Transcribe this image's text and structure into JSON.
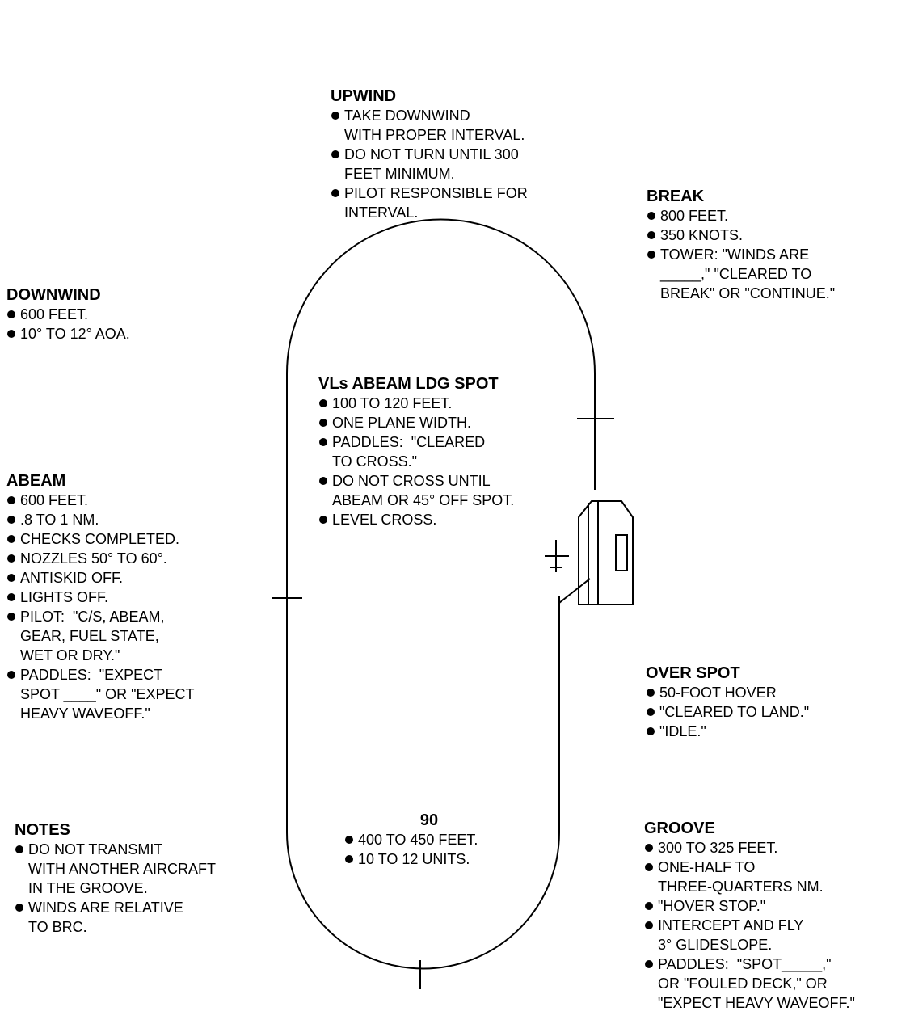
{
  "colors": {
    "ink": "#000000",
    "background": "#ffffff"
  },
  "sections": {
    "upwind": {
      "title": "UPWIND",
      "items": [
        "TAKE DOWNWIND\nWITH PROPER INTERVAL.",
        "DO NOT TURN UNTIL 300\nFEET MINIMUM.",
        "PILOT RESPONSIBLE FOR\nINTERVAL."
      ]
    },
    "break": {
      "title": "BREAK",
      "items": [
        "800 FEET.",
        "350 KNOTS.",
        "TOWER: \"WINDS ARE\n_____,\" \"CLEARED TO\nBREAK\" OR \"CONTINUE.\""
      ]
    },
    "downwind": {
      "title": "DOWNWIND",
      "items": [
        "600 FEET.",
        "10° TO 12° AOA."
      ]
    },
    "vls_abeam": {
      "title": "VLs ABEAM LDG SPOT",
      "items": [
        "100 TO 120 FEET.",
        "ONE PLANE WIDTH.",
        "PADDLES:  \"CLEARED\nTO CROSS.\"",
        "DO NOT CROSS UNTIL\nABEAM OR 45° OFF SPOT.",
        "LEVEL CROSS."
      ]
    },
    "abeam": {
      "title": "ABEAM",
      "items": [
        "600 FEET.",
        ".8 TO 1 NM.",
        "CHECKS COMPLETED.",
        "NOZZLES 50° TO 60°.",
        "ANTISKID OFF.",
        "LIGHTS OFF.",
        "PILOT:  \"C/S, ABEAM,\nGEAR, FUEL STATE,\nWET OR DRY.\"",
        "PADDLES:  \"EXPECT\nSPOT ____\" OR \"EXPECT\nHEAVY WAVEOFF.\""
      ]
    },
    "over_spot": {
      "title": "OVER SPOT",
      "items": [
        "50-FOOT HOVER",
        "\"CLEARED TO LAND.\"",
        "\"IDLE.\""
      ]
    },
    "ninety": {
      "title": "90",
      "items": [
        "400 TO 450 FEET.",
        "10 TO 12 UNITS."
      ]
    },
    "notes": {
      "title": "NOTES",
      "items": [
        "DO NOT TRANSMIT\nWITH ANOTHER AIRCRAFT\nIN THE GROOVE.",
        "WINDS ARE RELATIVE\nTO BRC."
      ]
    },
    "groove": {
      "title": "GROOVE",
      "items": [
        "300 TO 325 FEET.",
        "ONE-HALF TO\nTHREE-QUARTERS NM.",
        "\"HOVER STOP.\"",
        "INTERCEPT AND FLY\n3° GLIDESLOPE.",
        "PADDLES:  \"SPOT_____,\"\nOR \"FOULED DECK,\" OR\n\"EXPECT HEAVY WAVEOFF.\""
      ]
    }
  }
}
